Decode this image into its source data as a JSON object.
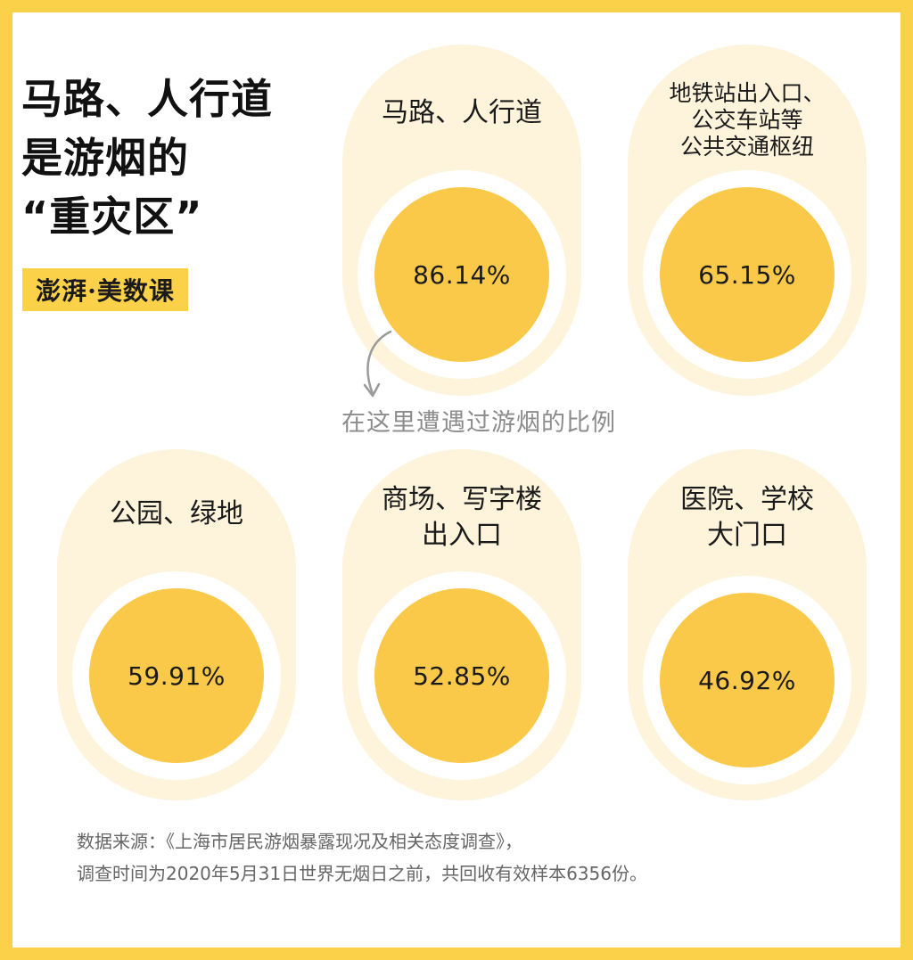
{
  "headline": [
    "马路、人行道",
    "是游烟的",
    "“重灾区”"
  ],
  "brand": {
    "text": "澎湃·美数课"
  },
  "annotation": "在这里遭遇过游烟的比例",
  "source": [
    "数据来源：《上海市居民游烟暴露现况及相关态度调查》，",
    "调查时间为2020年5月31日世界无烟日之前，共回收有效样本6356份。"
  ],
  "chart_data": {
    "type": "bubble",
    "unit": "%",
    "series": [
      {
        "values": [
          86.14,
          65.15,
          59.91,
          52.85,
          46.92
        ]
      }
    ],
    "items": [
      {
        "label_lines": [
          "马路、人行道"
        ],
        "value": 86.14,
        "value_text": "86.14%"
      },
      {
        "label_lines": [
          "地铁站出入口、",
          "公交车站等",
          "公共交通枢纽"
        ],
        "value": 65.15,
        "value_text": "65.15%"
      },
      {
        "label_lines": [
          "公园、绿地"
        ],
        "value": 59.91,
        "value_text": "59.91%"
      },
      {
        "label_lines": [
          "商场、写字楼",
          "出入口"
        ],
        "value": 52.85,
        "value_text": "52.85%"
      },
      {
        "label_lines": [
          "医院、学校",
          "大门口"
        ],
        "value": 46.92,
        "value_text": "46.92%"
      }
    ],
    "colors": {
      "circle": "#fbc94a",
      "pill": "#fef4dc",
      "frame": "#fbd14a"
    }
  }
}
